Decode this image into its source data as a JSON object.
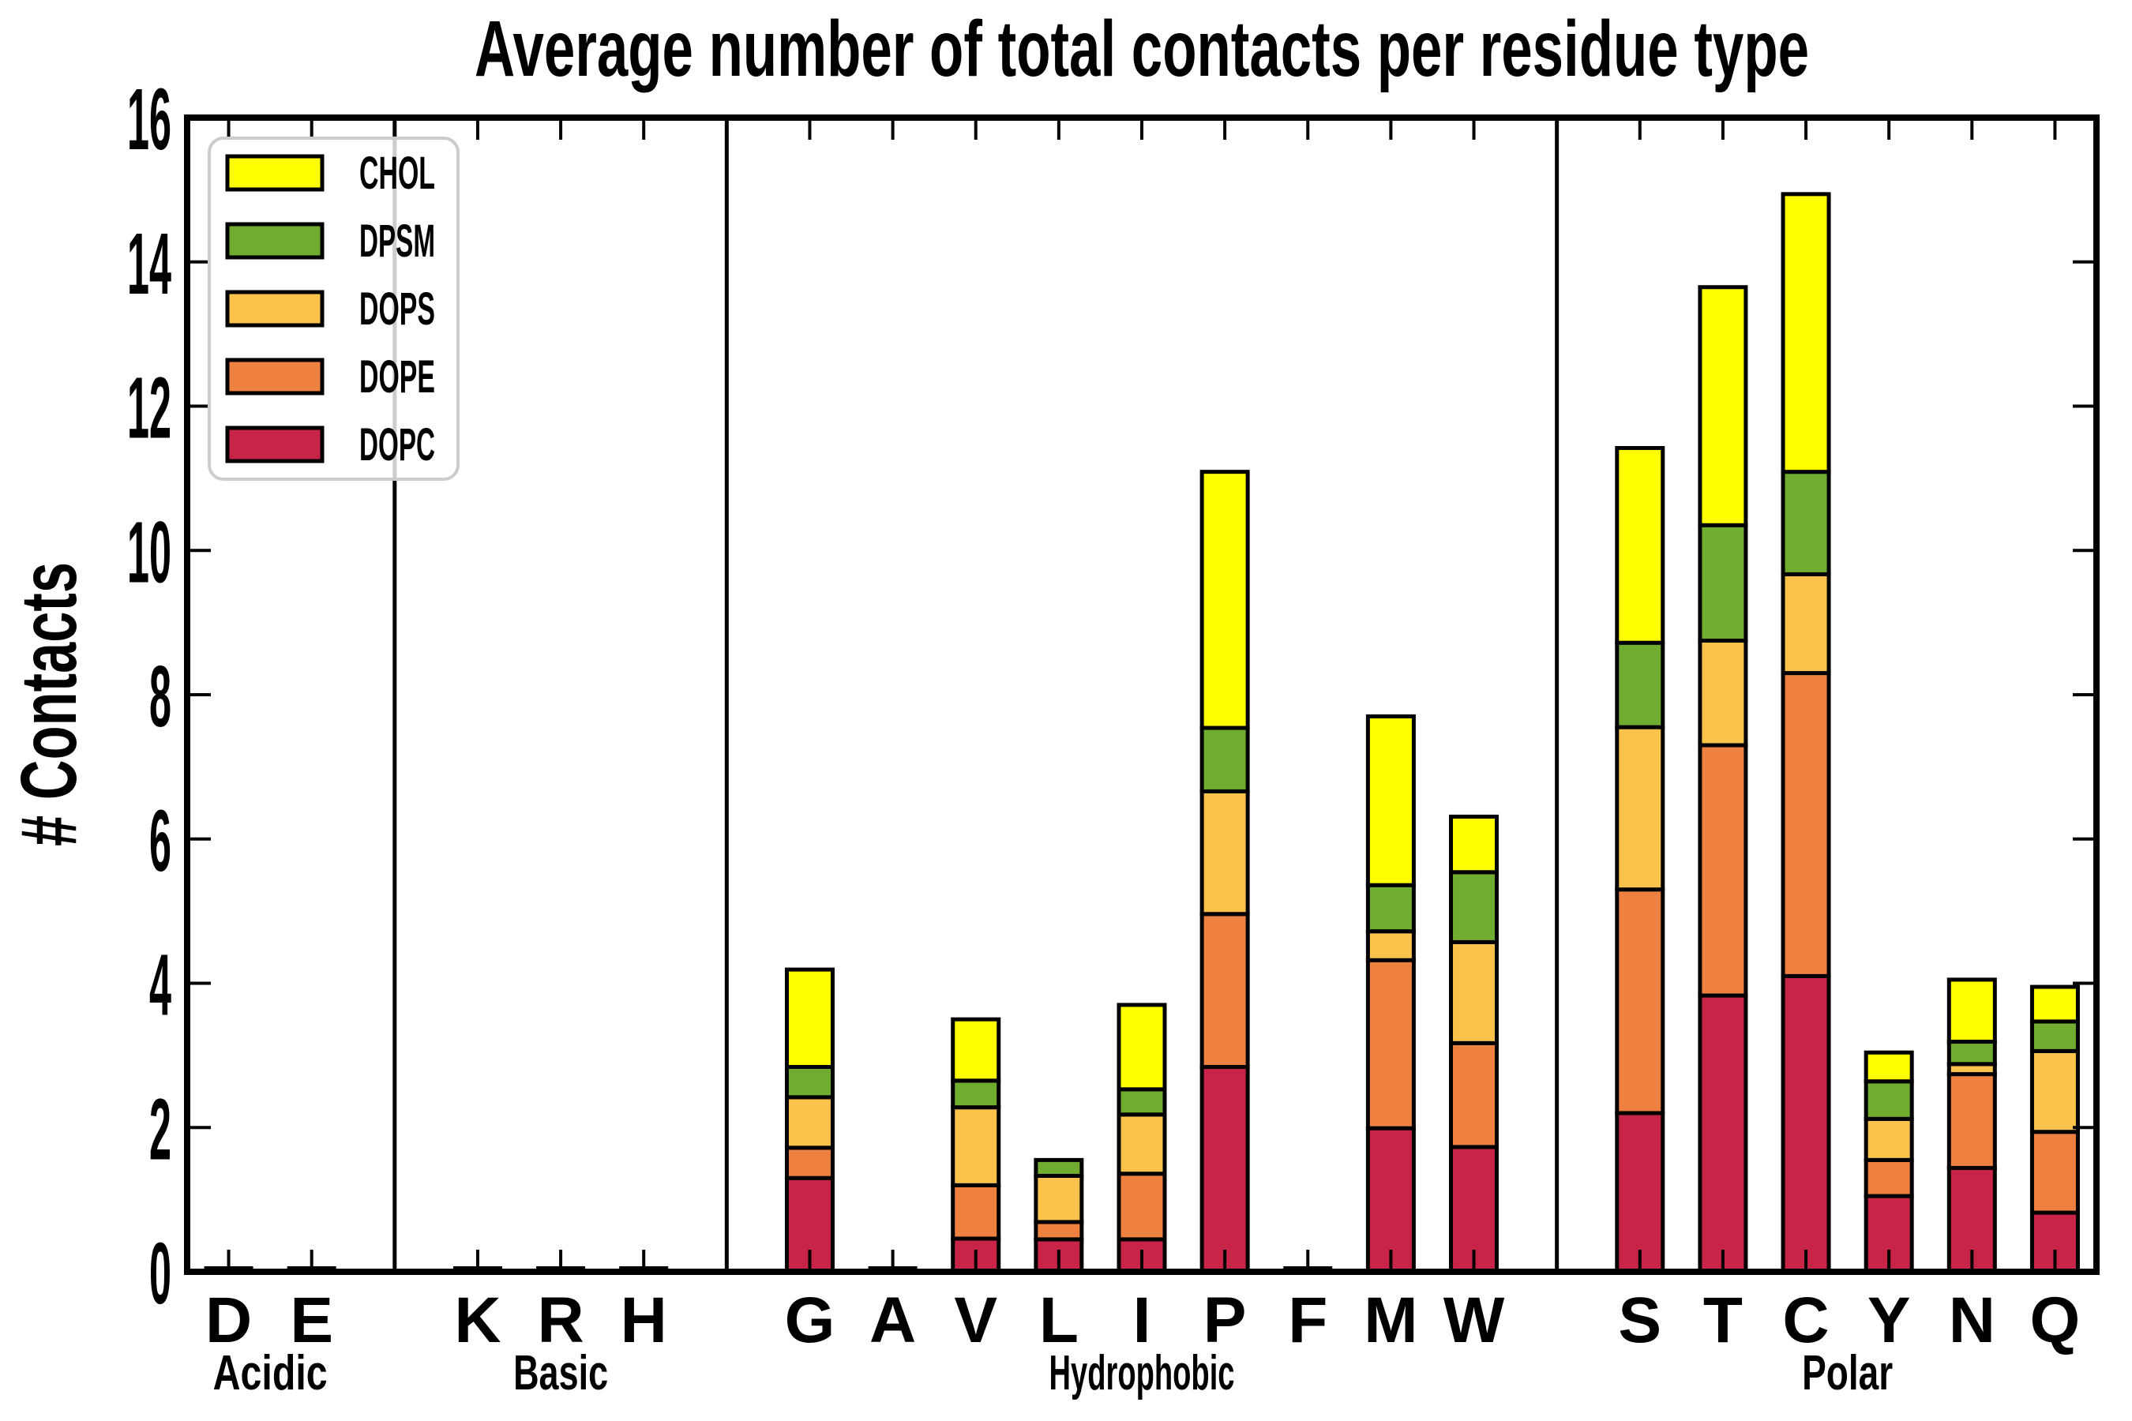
{
  "title": "Average number of total contacts per residue type",
  "ylabel": "# Contacts",
  "axes": {
    "ylim": [
      0,
      16
    ],
    "yticks": [
      0,
      2,
      4,
      6,
      8,
      10,
      12,
      14,
      16
    ],
    "grid": false,
    "tick_direction": "in",
    "ticks_all_sides": true
  },
  "legend": {
    "position": "upper-left",
    "entries": [
      {
        "label": "CHOL",
        "color": "#FFFF00"
      },
      {
        "label": "DPSM",
        "color": "#6FAC2F"
      },
      {
        "label": "DOPS",
        "color": "#FBC34B"
      },
      {
        "label": "DOPE",
        "color": "#EF8140"
      },
      {
        "label": "DOPC",
        "color": "#C72447"
      }
    ]
  },
  "chart_data": {
    "type": "bar",
    "stacked": true,
    "title": "Average number of total contacts per residue type",
    "xlabel": "",
    "ylabel": "# Contacts",
    "ylim": [
      0,
      16
    ],
    "stack_order_bottom_to_top": [
      "DOPC",
      "DOPE",
      "DOPS",
      "DPSM",
      "CHOL"
    ],
    "series_colors": {
      "DOPC": "#C72447",
      "DOPE": "#EF8140",
      "DOPS": "#FBC34B",
      "DPSM": "#6FAC2F",
      "CHOL": "#FFFF00"
    },
    "groups": [
      {
        "label": "Acidic",
        "residues": [
          {
            "label": "D",
            "segments": {
              "DOPC": 0,
              "DOPE": 0,
              "DOPS": 0,
              "DPSM": 0,
              "CHOL": 0
            }
          },
          {
            "label": "E",
            "segments": {
              "DOPC": 0,
              "DOPE": 0,
              "DOPS": 0,
              "DPSM": 0,
              "CHOL": 0
            }
          }
        ]
      },
      {
        "label": "Basic",
        "residues": [
          {
            "label": "K",
            "segments": {
              "DOPC": 0,
              "DOPE": 0,
              "DOPS": 0,
              "DPSM": 0,
              "CHOL": 0
            }
          },
          {
            "label": "R",
            "segments": {
              "DOPC": 0,
              "DOPE": 0,
              "DOPS": 0,
              "DPSM": 0,
              "CHOL": 0
            }
          },
          {
            "label": "H",
            "segments": {
              "DOPC": 0,
              "DOPE": 0,
              "DOPS": 0,
              "DPSM": 0,
              "CHOL": 0
            }
          }
        ]
      },
      {
        "label": "Hydrophobic",
        "residues": [
          {
            "label": "G",
            "segments": {
              "DOPC": 1.3,
              "DOPE": 0.42,
              "DOPS": 0.7,
              "DPSM": 0.42,
              "CHOL": 1.35
            }
          },
          {
            "label": "A",
            "segments": {
              "DOPC": 0,
              "DOPE": 0,
              "DOPS": 0,
              "DPSM": 0,
              "CHOL": 0
            }
          },
          {
            "label": "V",
            "segments": {
              "DOPC": 0.46,
              "DOPE": 0.74,
              "DOPS": 1.08,
              "DPSM": 0.37,
              "CHOL": 0.85
            }
          },
          {
            "label": "L",
            "segments": {
              "DOPC": 0.45,
              "DOPE": 0.24,
              "DOPS": 0.64,
              "DPSM": 0.22,
              "CHOL": 0
            }
          },
          {
            "label": "I",
            "segments": {
              "DOPC": 0.45,
              "DOPE": 0.91,
              "DOPS": 0.82,
              "DPSM": 0.35,
              "CHOL": 1.17
            }
          },
          {
            "label": "P",
            "segments": {
              "DOPC": 2.84,
              "DOPE": 2.12,
              "DOPS": 1.7,
              "DPSM": 0.88,
              "CHOL": 3.55
            }
          },
          {
            "label": "F",
            "segments": {
              "DOPC": 0,
              "DOPE": 0,
              "DOPS": 0,
              "DPSM": 0,
              "CHOL": 0
            }
          },
          {
            "label": "M",
            "segments": {
              "DOPC": 1.99,
              "DOPE": 2.33,
              "DOPS": 0.4,
              "DPSM": 0.64,
              "CHOL": 2.34
            }
          },
          {
            "label": "W",
            "segments": {
              "DOPC": 1.73,
              "DOPE": 1.44,
              "DOPS": 1.4,
              "DPSM": 0.97,
              "CHOL": 0.77
            }
          }
        ]
      },
      {
        "label": "Polar",
        "residues": [
          {
            "label": "S",
            "segments": {
              "DOPC": 2.2,
              "DOPE": 3.1,
              "DOPS": 2.25,
              "DPSM": 1.17,
              "CHOL": 2.7
            }
          },
          {
            "label": "T",
            "segments": {
              "DOPC": 3.83,
              "DOPE": 3.47,
              "DOPS": 1.45,
              "DPSM": 1.6,
              "CHOL": 3.3
            }
          },
          {
            "label": "C",
            "segments": {
              "DOPC": 4.1,
              "DOPE": 4.2,
              "DOPS": 1.37,
              "DPSM": 1.42,
              "CHOL": 3.85
            }
          },
          {
            "label": "Y",
            "segments": {
              "DOPC": 1.05,
              "DOPE": 0.5,
              "DOPS": 0.57,
              "DPSM": 0.52,
              "CHOL": 0.4
            }
          },
          {
            "label": "N",
            "segments": {
              "DOPC": 1.44,
              "DOPE": 1.3,
              "DOPS": 0.14,
              "DPSM": 0.31,
              "CHOL": 0.86
            }
          },
          {
            "label": "Q",
            "segments": {
              "DOPC": 0.82,
              "DOPE": 1.12,
              "DOPS": 1.12,
              "DPSM": 0.41,
              "CHOL": 0.48
            }
          }
        ]
      }
    ]
  }
}
